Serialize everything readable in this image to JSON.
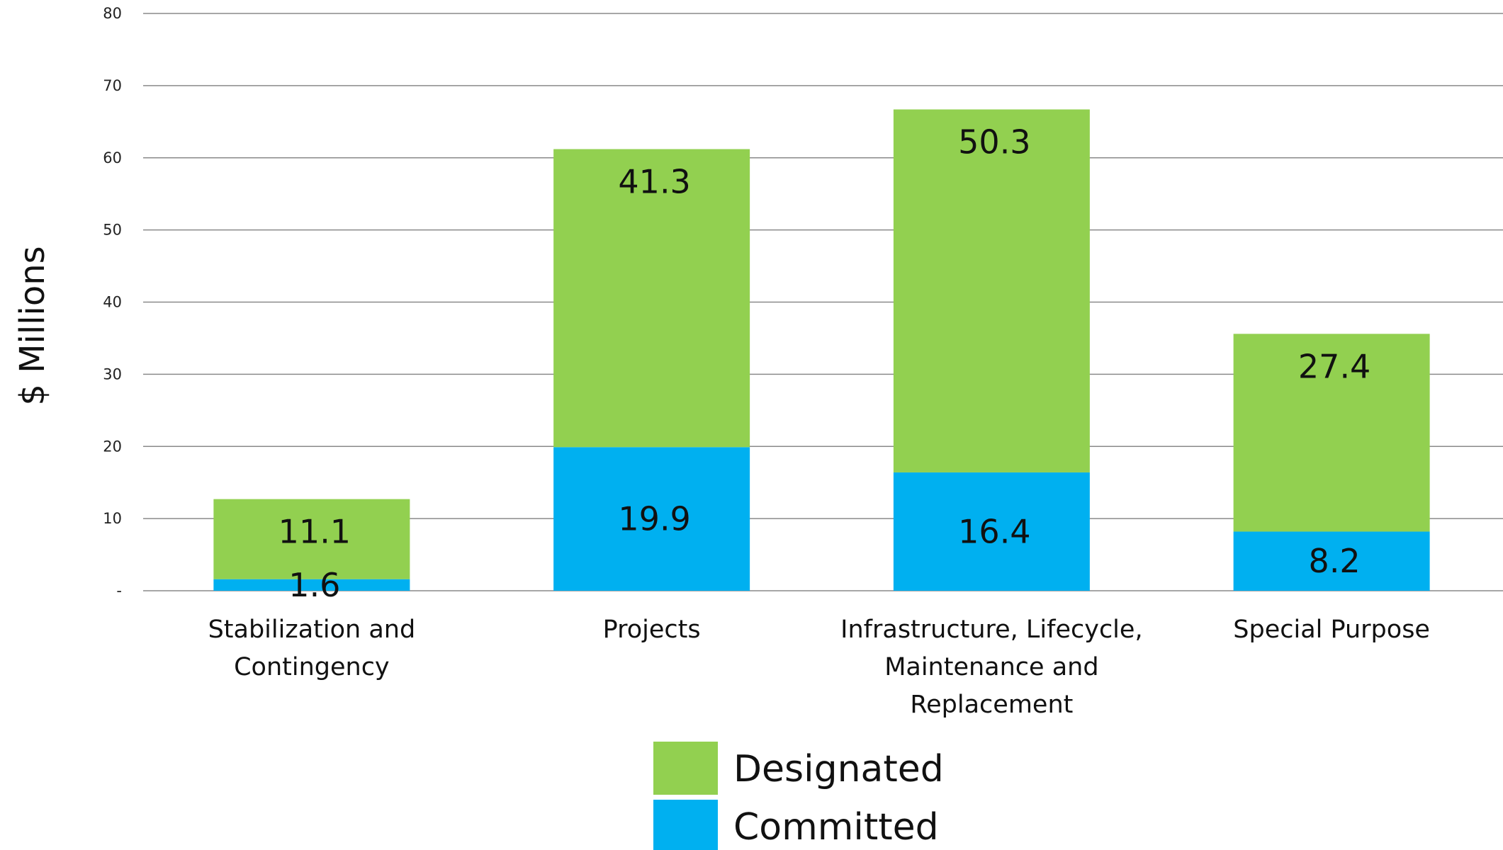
{
  "colors": {
    "designated": "#92d050",
    "committed": "#00b0f0",
    "grid": "#8a8a8a",
    "text": "#111111"
  },
  "chart_data": {
    "type": "bar",
    "stacked": true,
    "categories": [
      [
        "Stabilization and",
        "Contingency"
      ],
      [
        "Projects"
      ],
      [
        "Infrastructure, Lifecycle,",
        "Maintenance and",
        "Replacement"
      ],
      [
        "Special Purpose"
      ]
    ],
    "series": [
      {
        "name": "Committed",
        "color": "#00b0f0",
        "values": [
          1.6,
          19.9,
          16.4,
          8.2
        ],
        "labels": [
          "1.6",
          "19.9",
          "16.4",
          "8.2"
        ]
      },
      {
        "name": "Designated",
        "color": "#92d050",
        "values": [
          11.1,
          41.3,
          50.3,
          27.4
        ],
        "labels": [
          "11.1",
          "41.3",
          "50.3",
          "27.4"
        ]
      }
    ],
    "ylabel": "$ Millions",
    "ylim": [
      0,
      80
    ],
    "yticks": [
      0,
      10,
      20,
      30,
      40,
      50,
      60,
      70,
      80
    ],
    "ytick_labels": [
      "-",
      "10",
      "20",
      "30",
      "40",
      "50",
      "60",
      "70",
      "80"
    ],
    "grid": true,
    "legend": {
      "placement": "bottom-center",
      "entries": [
        {
          "name": "Designated",
          "color": "#92d050"
        },
        {
          "name": "Committed",
          "color": "#00b0f0"
        }
      ]
    }
  }
}
